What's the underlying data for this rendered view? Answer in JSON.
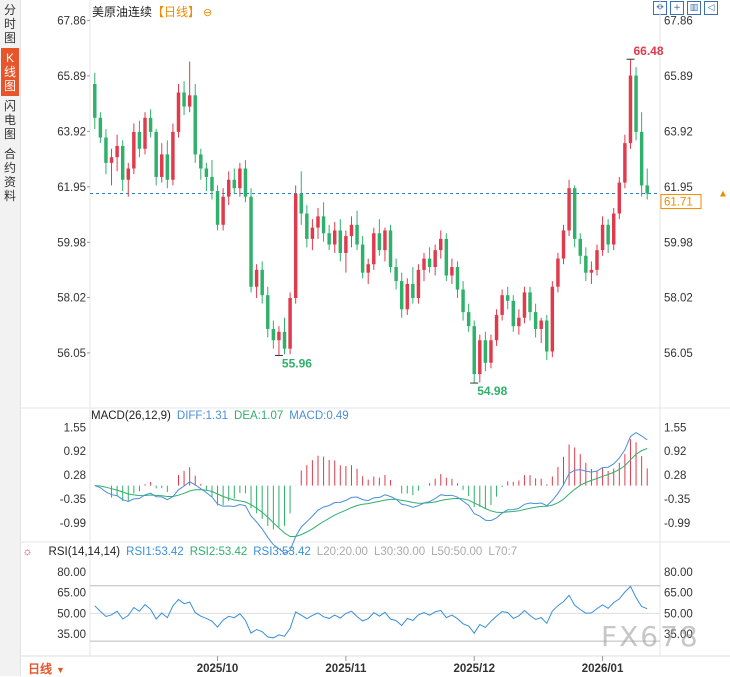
{
  "sidebar": {
    "tabs": [
      {
        "label": "分时图",
        "active": false
      },
      {
        "label": "K线图",
        "active": true
      },
      {
        "label": "闪电图",
        "active": false
      },
      {
        "label": "合约资料",
        "active": false
      }
    ]
  },
  "header": {
    "title": "美原油连续",
    "period": "【日线】",
    "tool_icons": [
      "expand-icon",
      "crosshair-icon",
      "panel-icon",
      "back-icon"
    ]
  },
  "colors": {
    "up": "#e03b4c",
    "down": "#2fb06b",
    "last_price": "#f08c00",
    "dif": "#4a8fd9",
    "dea": "#2fb06b",
    "macd_up": "#e03b4c",
    "macd_down": "#2fb06b",
    "rsi": "#3a8fd8"
  },
  "chart_data": {
    "type": "candlestick",
    "price_axis": {
      "ticks": [
        "67.86",
        "65.89",
        "63.92",
        "61.95",
        "59.98",
        "58.02",
        "56.05"
      ],
      "range": [
        54.2,
        68.3
      ]
    },
    "last_price": "61.71",
    "annotations": {
      "high_left": "66.42",
      "low_left": "55.96",
      "low_mid": "54.98",
      "high_right": "66.48"
    },
    "x_labels": [
      "2025/10",
      "2025/11",
      "2025/12",
      "2026/01"
    ],
    "ohlc": [
      [
        65.6,
        66.0,
        64.0,
        64.4
      ],
      [
        64.4,
        64.6,
        63.5,
        63.7
      ],
      [
        63.7,
        64.0,
        62.4,
        62.8
      ],
      [
        62.8,
        63.3,
        62.0,
        63.0
      ],
      [
        63.0,
        63.8,
        62.5,
        63.4
      ],
      [
        63.4,
        63.6,
        61.8,
        62.2
      ],
      [
        62.2,
        62.8,
        61.6,
        62.6
      ],
      [
        62.6,
        64.2,
        62.4,
        63.9
      ],
      [
        63.9,
        64.3,
        63.0,
        63.3
      ],
      [
        63.3,
        64.6,
        63.1,
        64.4
      ],
      [
        64.4,
        64.7,
        63.7,
        63.9
      ],
      [
        63.9,
        64.0,
        62.0,
        62.3
      ],
      [
        62.3,
        63.5,
        62.1,
        63.1
      ],
      [
        63.1,
        63.6,
        61.9,
        62.2
      ],
      [
        62.2,
        64.2,
        62.0,
        63.9
      ],
      [
        63.9,
        65.6,
        63.7,
        65.3
      ],
      [
        65.3,
        65.7,
        64.5,
        64.8
      ],
      [
        64.8,
        66.4,
        64.6,
        65.2
      ],
      [
        65.2,
        65.6,
        62.8,
        63.1
      ],
      [
        63.1,
        63.3,
        62.2,
        62.6
      ],
      [
        62.6,
        62.8,
        61.8,
        62.3
      ],
      [
        62.3,
        62.9,
        61.5,
        61.8
      ],
      [
        61.8,
        62.0,
        60.4,
        60.6
      ],
      [
        60.6,
        61.9,
        60.4,
        61.6
      ],
      [
        61.6,
        62.5,
        61.3,
        62.2
      ],
      [
        62.2,
        62.6,
        61.7,
        61.9
      ],
      [
        61.9,
        62.8,
        61.6,
        62.6
      ],
      [
        62.6,
        62.9,
        61.4,
        61.6
      ],
      [
        61.6,
        61.9,
        58.2,
        58.4
      ],
      [
        58.4,
        59.2,
        58.0,
        59.0
      ],
      [
        59.0,
        59.3,
        57.8,
        58.1
      ],
      [
        58.1,
        58.4,
        56.6,
        56.9
      ],
      [
        56.9,
        57.2,
        56.2,
        56.5
      ],
      [
        56.5,
        57.0,
        55.96,
        56.8
      ],
      [
        56.8,
        57.3,
        56.0,
        56.2
      ],
      [
        56.2,
        58.2,
        56.0,
        58.0
      ],
      [
        58.0,
        62.0,
        57.8,
        61.7
      ],
      [
        61.7,
        62.5,
        60.6,
        61.0
      ],
      [
        61.0,
        61.3,
        59.8,
        60.1
      ],
      [
        60.1,
        60.8,
        59.7,
        60.5
      ],
      [
        60.5,
        61.2,
        60.1,
        60.9
      ],
      [
        60.9,
        61.4,
        60.0,
        60.3
      ],
      [
        60.3,
        60.6,
        59.7,
        59.9
      ],
      [
        59.9,
        60.7,
        59.6,
        60.4
      ],
      [
        60.4,
        60.8,
        59.3,
        59.6
      ],
      [
        59.6,
        60.4,
        58.9,
        60.2
      ],
      [
        60.2,
        60.9,
        59.8,
        60.6
      ],
      [
        60.6,
        61.1,
        59.7,
        59.9
      ],
      [
        59.9,
        60.2,
        58.7,
        58.9
      ],
      [
        58.9,
        59.4,
        58.5,
        59.2
      ],
      [
        59.2,
        60.5,
        59.0,
        60.3
      ],
      [
        60.3,
        60.8,
        59.5,
        59.7
      ],
      [
        59.7,
        60.5,
        59.3,
        60.4
      ],
      [
        60.4,
        60.6,
        58.9,
        59.1
      ],
      [
        59.1,
        59.4,
        58.3,
        58.6
      ],
      [
        58.6,
        58.9,
        57.3,
        57.6
      ],
      [
        57.6,
        58.7,
        57.4,
        58.5
      ],
      [
        58.5,
        59.1,
        57.8,
        58.0
      ],
      [
        58.0,
        59.2,
        57.8,
        59.0
      ],
      [
        59.0,
        59.6,
        58.6,
        59.4
      ],
      [
        59.4,
        59.8,
        58.9,
        59.1
      ],
      [
        59.1,
        59.9,
        58.8,
        59.7
      ],
      [
        59.7,
        60.4,
        59.4,
        60.1
      ],
      [
        60.1,
        60.3,
        58.6,
        58.8
      ],
      [
        58.8,
        59.4,
        58.5,
        59.1
      ],
      [
        59.1,
        59.3,
        58.0,
        58.3
      ],
      [
        58.3,
        58.6,
        57.2,
        57.5
      ],
      [
        57.5,
        57.8,
        56.8,
        57.0
      ],
      [
        57.0,
        57.2,
        54.98,
        55.3
      ],
      [
        55.3,
        56.7,
        55.0,
        56.5
      ],
      [
        56.5,
        56.8,
        55.4,
        55.7
      ],
      [
        55.7,
        56.7,
        55.5,
        56.5
      ],
      [
        56.5,
        57.6,
        56.3,
        57.4
      ],
      [
        57.4,
        58.3,
        57.2,
        58.1
      ],
      [
        58.1,
        58.4,
        57.6,
        57.9
      ],
      [
        57.9,
        58.1,
        56.8,
        57.0
      ],
      [
        57.0,
        57.6,
        56.7,
        57.3
      ],
      [
        57.3,
        58.4,
        57.1,
        58.2
      ],
      [
        58.2,
        58.4,
        57.2,
        57.5
      ],
      [
        57.5,
        57.8,
        56.6,
        56.9
      ],
      [
        56.9,
        57.3,
        56.4,
        57.2
      ],
      [
        57.2,
        57.4,
        55.8,
        56.1
      ],
      [
        56.1,
        58.6,
        55.9,
        58.4
      ],
      [
        58.4,
        59.6,
        58.2,
        59.4
      ],
      [
        59.4,
        60.6,
        59.2,
        60.4
      ],
      [
        60.4,
        62.2,
        60.2,
        61.9
      ],
      [
        61.9,
        62.0,
        59.8,
        60.1
      ],
      [
        60.1,
        60.3,
        59.2,
        59.5
      ],
      [
        59.5,
        59.8,
        58.6,
        58.9
      ],
      [
        58.9,
        59.3,
        58.5,
        59.0
      ],
      [
        59.0,
        59.9,
        58.8,
        59.7
      ],
      [
        59.7,
        60.9,
        59.5,
        60.6
      ],
      [
        60.6,
        60.8,
        59.6,
        59.9
      ],
      [
        59.9,
        61.2,
        59.7,
        61.0
      ],
      [
        61.0,
        62.3,
        60.8,
        62.1
      ],
      [
        62.1,
        63.8,
        61.9,
        63.5
      ],
      [
        63.5,
        66.48,
        63.3,
        65.9
      ],
      [
        65.9,
        66.2,
        63.6,
        63.9
      ],
      [
        63.9,
        64.6,
        61.6,
        62.0
      ],
      [
        62.0,
        62.6,
        61.5,
        61.71
      ]
    ],
    "macd": {
      "label": "MACD(26,12,9)",
      "values": [
        "DIFF:1.31",
        "DEA:1.07",
        "MACD:0.49"
      ],
      "axis": [
        "1.55",
        "0.92",
        "0.28",
        "-0.35",
        "-0.99"
      ],
      "range": [
        -1.45,
        1.75
      ]
    },
    "rsi": {
      "label": "RSI(14,14,14)",
      "values": [
        "RSI1:53.42",
        "RSI2:53.42",
        "RSI3:53.42"
      ],
      "levels": [
        "L20:20.00",
        "L30:30.00",
        "L50:50.00",
        "L70:7"
      ],
      "axis": [
        "80.00",
        "65.00",
        "50.00",
        "35.00"
      ],
      "range": [
        20,
        90
      ],
      "series": [
        55.5,
        51.5,
        47.8,
        49.0,
        51.6,
        46.0,
        48.6,
        54.3,
        51.6,
        56.4,
        53.0,
        46.0,
        50.3,
        46.9,
        55.4,
        60.1,
        57.0,
        58.2,
        50.6,
        48.0,
        46.4,
        44.4,
        40.1,
        45.2,
        47.9,
        46.9,
        49.8,
        45.0,
        35.8,
        38.4,
        36.8,
        33.0,
        32.4,
        34.5,
        33.6,
        39.2,
        51.1,
        48.7,
        46.2,
        48.6,
        50.4,
        47.6,
        46.4,
        48.8,
        46.7,
        50.0,
        51.6,
        47.7,
        44.6,
        46.2,
        50.6,
        48.1,
        50.8,
        46.0,
        44.8,
        41.3,
        46.4,
        44.9,
        49.0,
        50.6,
        48.7,
        51.1,
        52.2,
        47.0,
        48.8,
        46.2,
        42.5,
        40.9,
        35.7,
        42.0,
        39.9,
        44.4,
        48.1,
        51.3,
        50.7,
        46.4,
        48.3,
        52.1,
        48.6,
        45.6,
        47.0,
        42.9,
        51.6,
        55.6,
        58.5,
        63.1,
        55.9,
        52.8,
        50.2,
        50.4,
        53.5,
        56.2,
        53.7,
        57.8,
        60.5,
        65.5,
        69.5,
        61.5,
        55.0,
        53.4
      ]
    }
  },
  "bottom": {
    "period_button": "日线"
  },
  "watermark": "FX678"
}
